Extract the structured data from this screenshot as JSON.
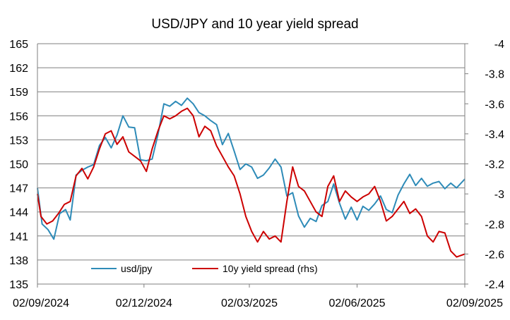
{
  "chart_data": {
    "type": "line",
    "title": "USD/JPY and 10 year yield spread",
    "xlabel": "",
    "ylabel": "",
    "x_tick_labels": [
      "02/09/2024",
      "02/12/2024",
      "02/03/2025",
      "02/06/2025",
      "02/09/2025"
    ],
    "x_range": [
      "2024-09-02",
      "2025-09-02"
    ],
    "y_left": {
      "lim": [
        135,
        165
      ],
      "ticks": [
        "135",
        "138",
        "141",
        "144",
        "147",
        "150",
        "153",
        "156",
        "159",
        "162",
        "165"
      ]
    },
    "y_right": {
      "lim": [
        -2.4,
        -4
      ],
      "ticks": [
        "-2.4",
        "-2.6",
        "-2.8",
        "-3",
        "-3.2",
        "-3.4",
        "-3.6",
        "-3.8",
        "-4"
      ]
    },
    "grid": true,
    "legend_position": "bottom-center",
    "series": [
      {
        "name": "usd/jpy",
        "axis": "left",
        "color": "#2e8bb8",
        "points": [
          [
            "2024-09-02",
            147.0
          ],
          [
            "2024-09-06",
            142.5
          ],
          [
            "2024-09-11",
            141.8
          ],
          [
            "2024-09-16",
            140.6
          ],
          [
            "2024-09-21",
            143.8
          ],
          [
            "2024-09-26",
            144.3
          ],
          [
            "2024-09-30",
            143.0
          ],
          [
            "2024-10-05",
            148.6
          ],
          [
            "2024-10-10",
            149.2
          ],
          [
            "2024-10-15",
            149.6
          ],
          [
            "2024-10-20",
            149.9
          ],
          [
            "2024-10-25",
            152.3
          ],
          [
            "2024-10-30",
            153.3
          ],
          [
            "2024-11-04",
            152.0
          ],
          [
            "2024-11-09",
            153.6
          ],
          [
            "2024-11-14",
            156.0
          ],
          [
            "2024-11-19",
            154.6
          ],
          [
            "2024-11-24",
            154.5
          ],
          [
            "2024-11-29",
            150.5
          ],
          [
            "2024-12-04",
            150.4
          ],
          [
            "2024-12-09",
            150.6
          ],
          [
            "2024-12-14",
            153.7
          ],
          [
            "2024-12-19",
            157.5
          ],
          [
            "2024-12-24",
            157.2
          ],
          [
            "2024-12-29",
            157.8
          ],
          [
            "2025-01-03",
            157.3
          ],
          [
            "2025-01-08",
            158.2
          ],
          [
            "2025-01-13",
            157.5
          ],
          [
            "2025-01-18",
            156.4
          ],
          [
            "2025-01-23",
            156.0
          ],
          [
            "2025-01-28",
            155.4
          ],
          [
            "2025-02-02",
            154.9
          ],
          [
            "2025-02-07",
            152.4
          ],
          [
            "2025-02-12",
            153.8
          ],
          [
            "2025-02-17",
            151.6
          ],
          [
            "2025-02-22",
            149.3
          ],
          [
            "2025-02-27",
            150.0
          ],
          [
            "2025-03-04",
            149.6
          ],
          [
            "2025-03-09",
            148.2
          ],
          [
            "2025-03-14",
            148.6
          ],
          [
            "2025-03-19",
            149.5
          ],
          [
            "2025-03-24",
            150.6
          ],
          [
            "2025-03-29",
            149.6
          ],
          [
            "2025-04-03",
            146.0
          ],
          [
            "2025-04-08",
            146.4
          ],
          [
            "2025-04-13",
            143.5
          ],
          [
            "2025-04-18",
            142.1
          ],
          [
            "2025-04-23",
            143.2
          ],
          [
            "2025-04-28",
            142.8
          ],
          [
            "2025-05-03",
            144.8
          ],
          [
            "2025-05-08",
            145.3
          ],
          [
            "2025-05-13",
            147.5
          ],
          [
            "2025-05-18",
            145.1
          ],
          [
            "2025-05-23",
            143.1
          ],
          [
            "2025-05-28",
            144.6
          ],
          [
            "2025-06-02",
            143.0
          ],
          [
            "2025-06-07",
            144.7
          ],
          [
            "2025-06-12",
            144.2
          ],
          [
            "2025-06-17",
            145.0
          ],
          [
            "2025-06-22",
            146.0
          ],
          [
            "2025-06-27",
            144.3
          ],
          [
            "2025-07-02",
            143.9
          ],
          [
            "2025-07-07",
            146.1
          ],
          [
            "2025-07-12",
            147.5
          ],
          [
            "2025-07-17",
            148.7
          ],
          [
            "2025-07-22",
            147.3
          ],
          [
            "2025-07-27",
            148.2
          ],
          [
            "2025-08-01",
            147.2
          ],
          [
            "2025-08-06",
            147.6
          ],
          [
            "2025-08-11",
            147.8
          ],
          [
            "2025-08-16",
            146.9
          ],
          [
            "2025-08-21",
            147.6
          ],
          [
            "2025-08-26",
            147.0
          ],
          [
            "2025-09-02",
            148.1
          ]
        ]
      },
      {
        "name": "10y yield spread (rhs)",
        "axis": "right",
        "color": "#cc0000",
        "points": [
          [
            "2024-09-02",
            -3.0
          ],
          [
            "2024-09-05",
            -2.85
          ],
          [
            "2024-09-10",
            -2.8
          ],
          [
            "2024-09-15",
            -2.82
          ],
          [
            "2024-09-20",
            -2.87
          ],
          [
            "2024-09-25",
            -2.93
          ],
          [
            "2024-09-30",
            -2.95
          ],
          [
            "2024-10-05",
            -3.12
          ],
          [
            "2024-10-10",
            -3.17
          ],
          [
            "2024-10-15",
            -3.1
          ],
          [
            "2024-10-20",
            -3.18
          ],
          [
            "2024-10-25",
            -3.3
          ],
          [
            "2024-10-30",
            -3.4
          ],
          [
            "2024-11-04",
            -3.42
          ],
          [
            "2024-11-09",
            -3.33
          ],
          [
            "2024-11-14",
            -3.38
          ],
          [
            "2024-11-19",
            -3.28
          ],
          [
            "2024-11-24",
            -3.25
          ],
          [
            "2024-11-29",
            -3.22
          ],
          [
            "2024-12-04",
            -3.15
          ],
          [
            "2024-12-09",
            -3.3
          ],
          [
            "2024-12-14",
            -3.42
          ],
          [
            "2024-12-19",
            -3.52
          ],
          [
            "2024-12-24",
            -3.5
          ],
          [
            "2024-12-29",
            -3.52
          ],
          [
            "2025-01-03",
            -3.55
          ],
          [
            "2025-01-08",
            -3.57
          ],
          [
            "2025-01-13",
            -3.52
          ],
          [
            "2025-01-18",
            -3.38
          ],
          [
            "2025-01-23",
            -3.45
          ],
          [
            "2025-01-28",
            -3.42
          ],
          [
            "2025-02-02",
            -3.32
          ],
          [
            "2025-02-07",
            -3.25
          ],
          [
            "2025-02-12",
            -3.18
          ],
          [
            "2025-02-17",
            -3.12
          ],
          [
            "2025-02-22",
            -3.0
          ],
          [
            "2025-02-27",
            -2.85
          ],
          [
            "2025-03-04",
            -2.75
          ],
          [
            "2025-03-09",
            -2.68
          ],
          [
            "2025-03-14",
            -2.75
          ],
          [
            "2025-03-19",
            -2.7
          ],
          [
            "2025-03-24",
            -2.72
          ],
          [
            "2025-03-29",
            -2.68
          ],
          [
            "2025-04-03",
            -2.95
          ],
          [
            "2025-04-08",
            -3.18
          ],
          [
            "2025-04-13",
            -3.05
          ],
          [
            "2025-04-18",
            -3.02
          ],
          [
            "2025-04-23",
            -2.95
          ],
          [
            "2025-04-28",
            -2.88
          ],
          [
            "2025-05-03",
            -2.85
          ],
          [
            "2025-05-08",
            -3.05
          ],
          [
            "2025-05-13",
            -3.12
          ],
          [
            "2025-05-18",
            -2.95
          ],
          [
            "2025-05-23",
            -3.02
          ],
          [
            "2025-05-28",
            -2.98
          ],
          [
            "2025-06-02",
            -2.95
          ],
          [
            "2025-06-07",
            -2.98
          ],
          [
            "2025-06-12",
            -3.0
          ],
          [
            "2025-06-17",
            -3.05
          ],
          [
            "2025-06-22",
            -2.95
          ],
          [
            "2025-06-27",
            -2.82
          ],
          [
            "2025-07-02",
            -2.85
          ],
          [
            "2025-07-07",
            -2.9
          ],
          [
            "2025-07-12",
            -2.95
          ],
          [
            "2025-07-17",
            -2.87
          ],
          [
            "2025-07-22",
            -2.9
          ],
          [
            "2025-07-27",
            -2.85
          ],
          [
            "2025-08-01",
            -2.72
          ],
          [
            "2025-08-06",
            -2.68
          ],
          [
            "2025-08-11",
            -2.75
          ],
          [
            "2025-08-16",
            -2.74
          ],
          [
            "2025-08-21",
            -2.62
          ],
          [
            "2025-08-26",
            -2.58
          ],
          [
            "2025-09-02",
            -2.6
          ]
        ]
      }
    ]
  }
}
